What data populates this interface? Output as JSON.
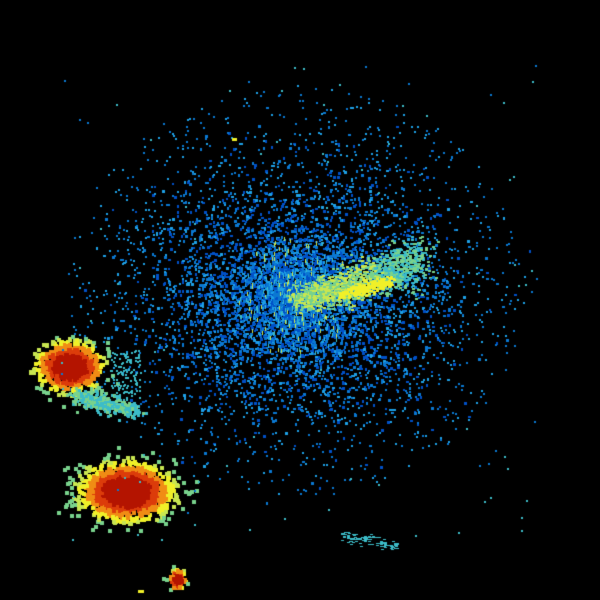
{
  "image": {
    "kind": "radar-reflectivity",
    "background": "#000000",
    "palette": {
      "dark_blue": "#0050c8",
      "blue": "#0a78d2",
      "light_blue": "#1ea0e6",
      "teal": "#3cbcc8",
      "green": "#78d28c",
      "yellow_green": "#c8e650",
      "yellow": "#f0f028",
      "orange": "#f08c14",
      "red": "#dc3c0a",
      "dark_red": "#b41400"
    },
    "features": [
      {
        "name": "central-echo-cloud",
        "intensity": "light"
      },
      {
        "name": "bright-band-streak",
        "intensity": "moderate"
      },
      {
        "name": "west-storm-cell",
        "intensity": "heavy"
      },
      {
        "name": "southwest-storm-cell",
        "intensity": "heavy"
      },
      {
        "name": "south-small-cell",
        "intensity": "heavy"
      }
    ]
  }
}
